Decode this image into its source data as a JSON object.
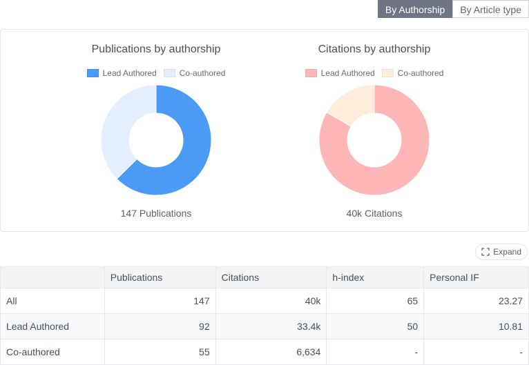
{
  "toggle": {
    "options": [
      {
        "label": "By Authorship",
        "active": true
      },
      {
        "label": "By Article type",
        "active": false
      }
    ]
  },
  "chart_data": [
    {
      "type": "pie",
      "title": "Publications by authorship",
      "categories": [
        "Lead Authored",
        "Co-authored"
      ],
      "values": [
        92,
        55
      ],
      "colors": [
        "#4b9af6",
        "#e3efff"
      ],
      "caption": "147 Publications",
      "legend_position": "top"
    },
    {
      "type": "pie",
      "title": "Citations by authorship",
      "categories": [
        "Lead Authored",
        "Co-authored"
      ],
      "values": [
        33.4,
        6.634
      ],
      "colors": [
        "#ffb6b6",
        "#ffeddb"
      ],
      "caption": "40k Citations",
      "legend_position": "top"
    }
  ],
  "expand": {
    "label": "Expand",
    "icon": "expand-icon"
  },
  "table": {
    "columns": [
      "",
      "Publications",
      "Citations",
      "h-index",
      "Personal IF"
    ],
    "rows": [
      [
        "All",
        "147",
        "40k",
        "65",
        "23.27"
      ],
      [
        "Lead Authored",
        "92",
        "33.4k",
        "50",
        "10.81"
      ],
      [
        "Co-authored",
        "55",
        "6,634",
        "-",
        "-"
      ]
    ]
  }
}
